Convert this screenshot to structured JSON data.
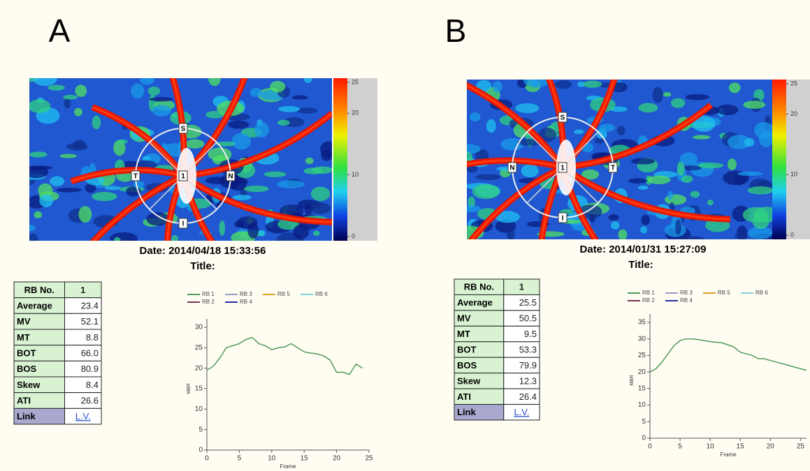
{
  "panels": [
    {
      "label": "A",
      "date": "Date: 2014/04/18 15:33:56",
      "title": "Title:",
      "colorbar": {
        "lim": [
          0,
          25
        ],
        "ticks": [
          0,
          10,
          20,
          25
        ]
      },
      "disc_labels": {
        "top": "S",
        "right": "N",
        "bottom": "I",
        "left": "T",
        "center": "1"
      },
      "table": {
        "rows": [
          [
            "RB No.",
            "1"
          ],
          [
            "Average",
            "23.4"
          ],
          [
            "MV",
            "52.1"
          ],
          [
            "MT",
            "8.8"
          ],
          [
            "BOT",
            "66.0"
          ],
          [
            "BOS",
            "80.9"
          ],
          [
            "Skew",
            "8.4"
          ],
          [
            "ATI",
            "26.6"
          ],
          [
            "Link",
            "L.V."
          ]
        ]
      }
    },
    {
      "label": "B",
      "date": "Date: 2014/01/31 15:27:09",
      "title": "Title:",
      "colorbar": {
        "lim": [
          0,
          25
        ],
        "ticks": [
          0,
          10,
          20,
          25
        ]
      },
      "disc_labels": {
        "top": "S",
        "right": "T",
        "bottom": "I",
        "left": "N",
        "center": "1"
      },
      "table": {
        "rows": [
          [
            "RB No.",
            "1"
          ],
          [
            "Average",
            "25.5"
          ],
          [
            "MV",
            "50.5"
          ],
          [
            "MT",
            "9.5"
          ],
          [
            "BOT",
            "53.3"
          ],
          [
            "BOS",
            "79.9"
          ],
          [
            "Skew",
            "12.3"
          ],
          [
            "ATI",
            "26.4"
          ],
          [
            "Link",
            "L.V."
          ]
        ]
      }
    }
  ],
  "chart_data": [
    {
      "type": "line",
      "x_label": "Frame",
      "y_label": "MBR",
      "x": [
        0,
        1,
        2,
        3,
        4,
        5,
        6,
        7,
        8,
        9,
        10,
        11,
        12,
        13,
        14,
        15,
        16,
        17,
        18,
        19,
        20,
        21,
        22,
        23,
        24
      ],
      "xlim": [
        0,
        25
      ],
      "xticks": [
        0,
        5,
        10,
        15,
        20,
        25
      ],
      "ylim": [
        0,
        30
      ],
      "yticks": [
        0,
        5,
        10,
        15,
        20,
        25,
        30
      ],
      "series": [
        {
          "name": "RB 1",
          "color": "#4f9a5a",
          "values": [
            19.5,
            20.5,
            22.5,
            25,
            25.5,
            26,
            27,
            27.5,
            26,
            25.5,
            24.5,
            25,
            25.2,
            26,
            25,
            24,
            23.7,
            23.5,
            23,
            22,
            19,
            19,
            18.5,
            21,
            20
          ]
        },
        {
          "name": "RB 3",
          "color": "#9a9ac8",
          "values": [
            null,
            null,
            null,
            null,
            null,
            null,
            null,
            null,
            null,
            null,
            null,
            null,
            null,
            null,
            null,
            null,
            null,
            null,
            null,
            null,
            null,
            null,
            null,
            null,
            null
          ]
        },
        {
          "name": "RB 5",
          "color": "#e0a020",
          "values": [
            null,
            null,
            null,
            null,
            null,
            null,
            null,
            null,
            null,
            null,
            null,
            null,
            null,
            null,
            null,
            null,
            null,
            null,
            null,
            null,
            null,
            null,
            null,
            null,
            null
          ]
        },
        {
          "name": "RB 6",
          "color": "#80d0e0",
          "values": [
            null,
            null,
            null,
            null,
            null,
            null,
            null,
            null,
            null,
            null,
            null,
            null,
            null,
            null,
            null,
            null,
            null,
            null,
            null,
            null,
            null,
            null,
            null,
            null,
            null
          ]
        },
        {
          "name": "RB 2",
          "color": "#7a3050",
          "values": [
            null,
            null,
            null,
            null,
            null,
            null,
            null,
            null,
            null,
            null,
            null,
            null,
            null,
            null,
            null,
            null,
            null,
            null,
            null,
            null,
            null,
            null,
            null,
            null,
            null
          ]
        },
        {
          "name": "RB 4",
          "color": "#2030a0",
          "values": [
            null,
            null,
            null,
            null,
            null,
            null,
            null,
            null,
            null,
            null,
            null,
            null,
            null,
            null,
            null,
            null,
            null,
            null,
            null,
            null,
            null,
            null,
            null,
            null,
            null
          ]
        }
      ]
    },
    {
      "type": "line",
      "x_label": "Frame",
      "y_label": "MBR",
      "x": [
        0,
        1,
        2,
        3,
        4,
        5,
        6,
        7,
        8,
        9,
        10,
        11,
        12,
        13,
        14,
        15,
        16,
        17,
        18,
        19,
        20,
        21,
        22,
        23,
        24,
        25,
        26
      ],
      "xlim": [
        0,
        26
      ],
      "xticks": [
        0,
        5,
        10,
        15,
        20,
        25
      ],
      "ylim": [
        0,
        35
      ],
      "yticks": [
        0,
        5,
        10,
        15,
        20,
        25,
        30,
        35
      ],
      "series": [
        {
          "name": "RB 1",
          "color": "#4f9a5a",
          "values": [
            20,
            21,
            23,
            25.5,
            28,
            29.5,
            30,
            30,
            29.8,
            29.5,
            29.2,
            29,
            28.8,
            28.2,
            27.5,
            26,
            25.5,
            25,
            24,
            24,
            23.5,
            23,
            22.5,
            22,
            21.5,
            21,
            20.5
          ]
        },
        {
          "name": "RB 3",
          "color": "#9a9ac8",
          "values": [
            null,
            null,
            null,
            null,
            null,
            null,
            null,
            null,
            null,
            null,
            null,
            null,
            null,
            null,
            null,
            null,
            null,
            null,
            null,
            null,
            null,
            null,
            null,
            null,
            null,
            null,
            null
          ]
        },
        {
          "name": "RB 5",
          "color": "#e0a020",
          "values": [
            null,
            null,
            null,
            null,
            null,
            null,
            null,
            null,
            null,
            null,
            null,
            null,
            null,
            null,
            null,
            null,
            null,
            null,
            null,
            null,
            null,
            null,
            null,
            null,
            null,
            null,
            null
          ]
        },
        {
          "name": "RB 6",
          "color": "#80d0e0",
          "values": [
            null,
            null,
            null,
            null,
            null,
            null,
            null,
            null,
            null,
            null,
            null,
            null,
            null,
            null,
            null,
            null,
            null,
            null,
            null,
            null,
            null,
            null,
            null,
            null,
            null,
            null,
            null
          ]
        },
        {
          "name": "RB 2",
          "color": "#7a3050",
          "values": [
            null,
            null,
            null,
            null,
            null,
            null,
            null,
            null,
            null,
            null,
            null,
            null,
            null,
            null,
            null,
            null,
            null,
            null,
            null,
            null,
            null,
            null,
            null,
            null,
            null,
            null,
            null
          ]
        },
        {
          "name": "RB 4",
          "color": "#2030a0",
          "values": [
            null,
            null,
            null,
            null,
            null,
            null,
            null,
            null,
            null,
            null,
            null,
            null,
            null,
            null,
            null,
            null,
            null,
            null,
            null,
            null,
            null,
            null,
            null,
            null,
            null,
            null,
            null
          ]
        }
      ]
    }
  ]
}
